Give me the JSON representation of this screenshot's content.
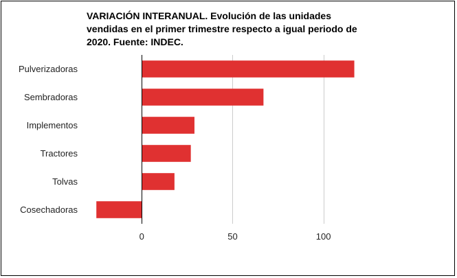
{
  "chart_data": {
    "type": "bar",
    "orientation": "horizontal",
    "title": "VARIACIÓN INTERANUAL. Evolución de las unidades vendidas en el primer trimestre respecto a igual periodo de 2020. Fuente: INDEC.",
    "categories": [
      "Pulverizadoras",
      "Sembradoras",
      "Implementos",
      "Tractores",
      "Tolvas",
      "Cosechadoras"
    ],
    "values": [
      117,
      67,
      29,
      27,
      18,
      -25
    ],
    "xlabel": "",
    "ylabel": "",
    "xlim": [
      -30,
      155
    ],
    "xticks": [
      0,
      50,
      100
    ],
    "grid": true,
    "legend": "none",
    "bar_color": "#e03131",
    "grid_color": "#cccccc",
    "axis_color": "#000000"
  }
}
